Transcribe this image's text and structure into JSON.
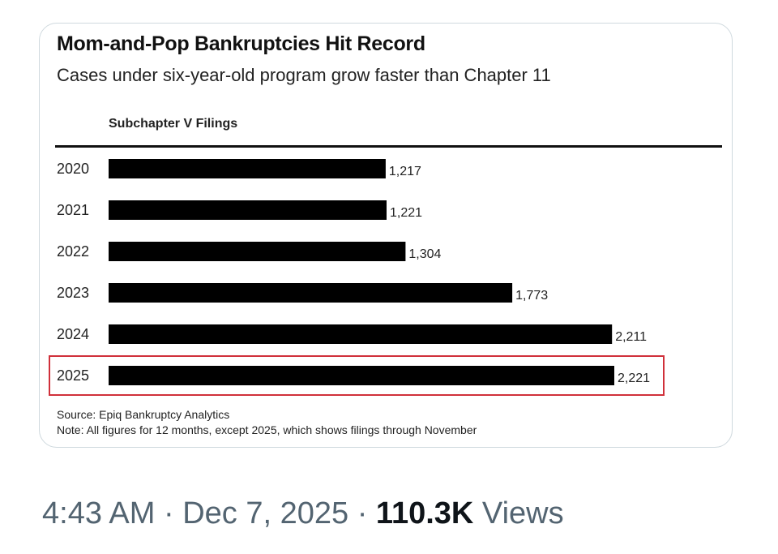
{
  "tweet": {
    "time": "4:43 AM",
    "separator": "·",
    "date": "Dec 7, 2025",
    "views_count": "110.3K",
    "views_label": "Views"
  },
  "chart_data": {
    "type": "bar",
    "orientation": "horizontal",
    "title": "Mom-and-Pop Bankruptcies Hit Record",
    "subtitle": "Cases under six-year-old program grow faster than Chapter 11",
    "series_label": "Subchapter V Filings",
    "categories": [
      "2020",
      "2021",
      "2022",
      "2023",
      "2024",
      "2025"
    ],
    "values": [
      1217,
      1221,
      1304,
      1773,
      2211,
      2221
    ],
    "value_labels": [
      "1,217",
      "1,221",
      "1,304",
      "1,773",
      "2,211",
      "2,221"
    ],
    "xlim": [
      0,
      2221
    ],
    "highlight_category": "2025",
    "colors": {
      "bar": "#000000",
      "highlight": "#d0303a"
    },
    "source": "Source: Epiq Bankruptcy Analytics",
    "note": "Note: All figures for 12 months, except 2025, which shows filings through November"
  }
}
